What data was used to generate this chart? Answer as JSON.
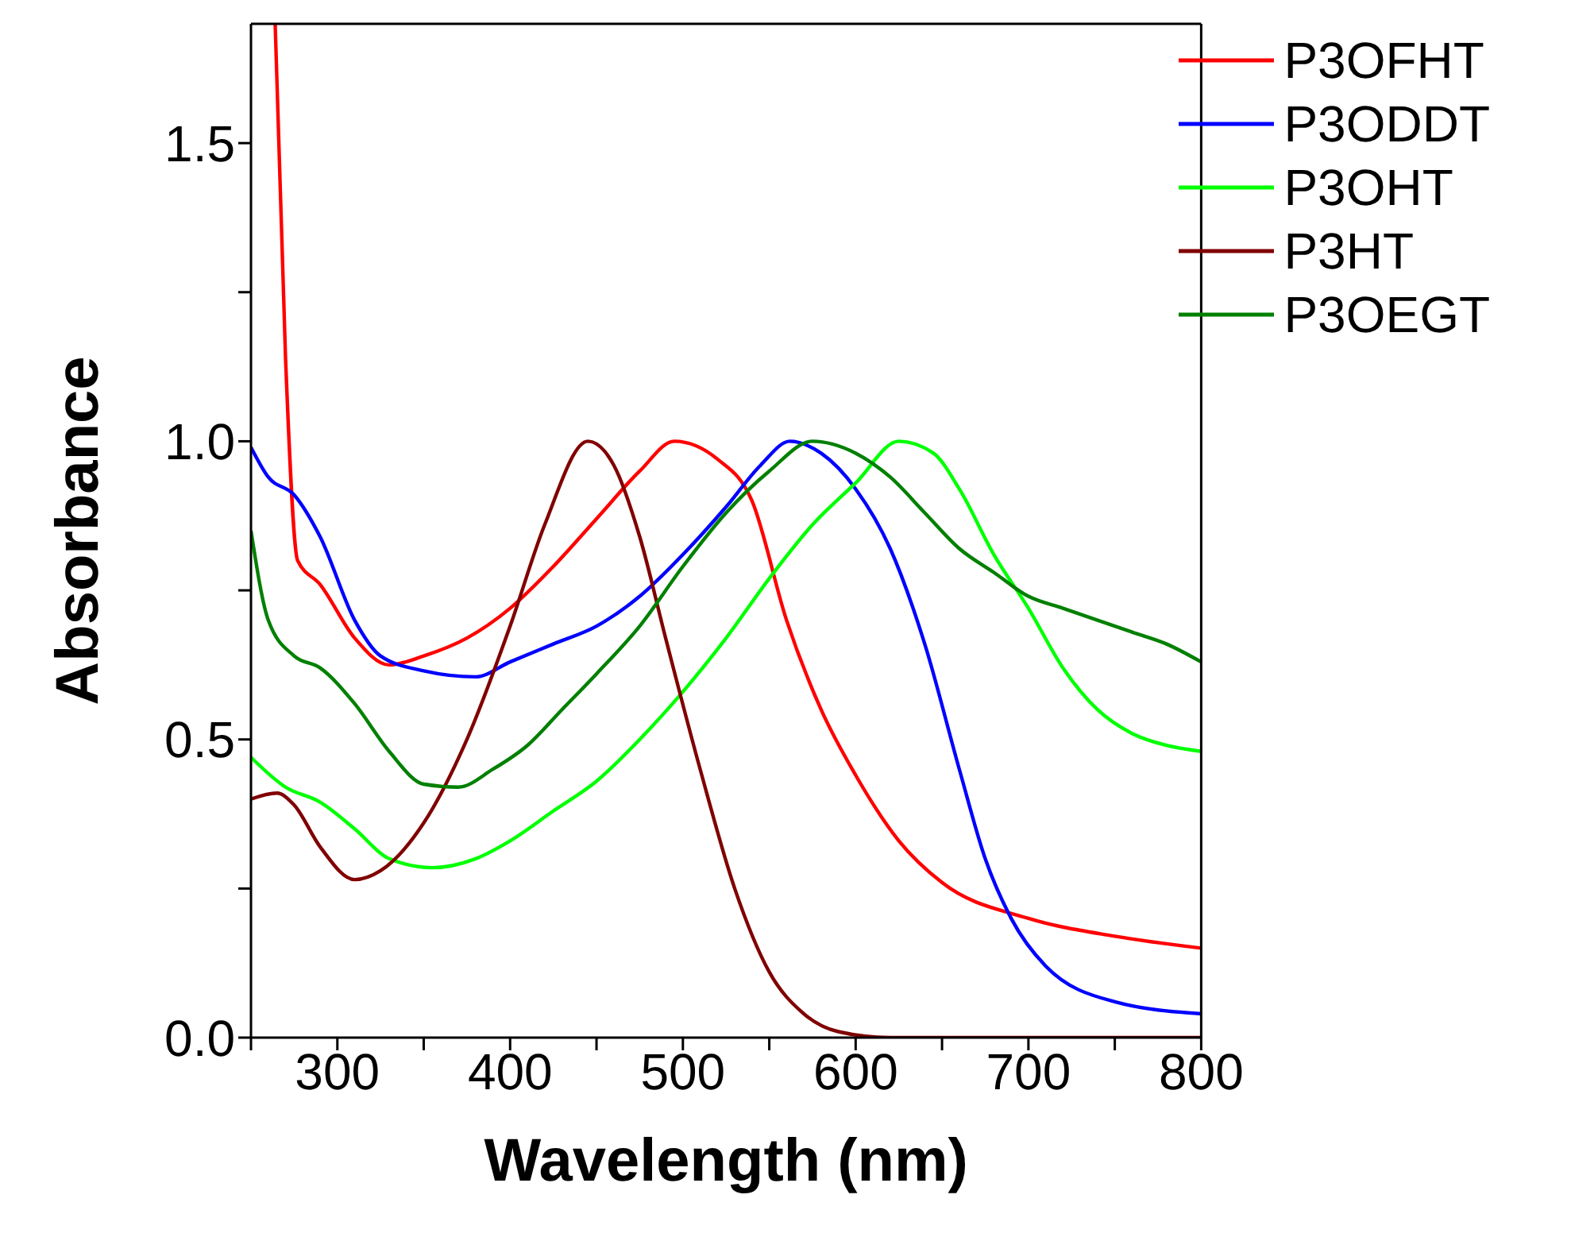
{
  "chart_data": {
    "type": "line",
    "xlabel": "Wavelength (nm)",
    "ylabel": "Absorbance",
    "xlim": [
      250,
      800
    ],
    "xticks": [
      {
        "value": 250,
        "label": null
      },
      300,
      {
        "value": 350,
        "label": null
      },
      400,
      {
        "value": 450,
        "label": null
      },
      500,
      {
        "value": 550,
        "label": null
      },
      600,
      {
        "value": 650,
        "label": null
      },
      700,
      {
        "value": 750,
        "label": null
      },
      800
    ],
    "ylim": [
      0,
      1.7
    ],
    "yticks": [
      {
        "value": 0,
        "label": "0.0"
      },
      {
        "value": 0.25,
        "label": null
      },
      0.5,
      {
        "value": 0.75,
        "label": null
      },
      {
        "value": 1,
        "label": "1.0"
      },
      {
        "value": 1.25,
        "label": null
      },
      1.5
    ],
    "grid": false,
    "legend": "top right",
    "marker": "none",
    "line_style": "solid",
    "series": [
      {
        "name": "P3OFHT",
        "color": "#ff0000",
        "x": [
          264,
          270,
          277,
          290,
          310,
          330,
          350,
          375,
          400,
          425,
          450,
          475,
          495,
          520,
          540,
          560,
          580,
          600,
          625,
          650,
          700,
          750,
          800
        ],
        "values": [
          1.7,
          1.14,
          0.8,
          0.76,
          0.67,
          0.625,
          0.64,
          0.67,
          0.72,
          0.79,
          0.87,
          0.95,
          1.0,
          0.97,
          0.9,
          0.7,
          0.55,
          0.44,
          0.33,
          0.26,
          0.2,
          0.17,
          0.15
        ]
      },
      {
        "name": "P3ODDT",
        "color": "#0000ff",
        "x": [
          250,
          260,
          275,
          290,
          310,
          325,
          350,
          380,
          400,
          425,
          450,
          475,
          500,
          525,
          545,
          562,
          580,
          600,
          620,
          640,
          660,
          675,
          690,
          710,
          750,
          800
        ],
        "values": [
          0.99,
          0.94,
          0.91,
          0.84,
          0.7,
          0.64,
          0.615,
          0.605,
          0.63,
          0.66,
          0.69,
          0.74,
          0.81,
          0.89,
          0.96,
          1.0,
          0.98,
          0.92,
          0.82,
          0.66,
          0.45,
          0.3,
          0.2,
          0.12,
          0.06,
          0.04
        ]
      },
      {
        "name": "P3OHT",
        "color": "#00ff00",
        "x": [
          250,
          270,
          290,
          310,
          330,
          355,
          380,
          400,
          425,
          450,
          475,
          500,
          525,
          550,
          575,
          600,
          625,
          645,
          660,
          680,
          700,
          720,
          740,
          760,
          780,
          800
        ],
        "values": [
          0.47,
          0.42,
          0.395,
          0.35,
          0.3,
          0.285,
          0.3,
          0.33,
          0.38,
          0.43,
          0.5,
          0.58,
          0.67,
          0.77,
          0.86,
          0.93,
          1.0,
          0.98,
          0.92,
          0.81,
          0.72,
          0.62,
          0.55,
          0.51,
          0.49,
          0.48
        ]
      },
      {
        "name": "P3HT",
        "color": "#800000",
        "x": [
          250,
          265,
          275,
          290,
          310,
          325,
          350,
          375,
          400,
          420,
          445,
          460,
          475,
          490,
          510,
          530,
          550,
          570,
          590,
          620,
          700,
          800
        ],
        "values": [
          0.4,
          0.41,
          0.39,
          0.32,
          0.265,
          0.28,
          0.36,
          0.5,
          0.69,
          0.86,
          1.0,
          0.96,
          0.84,
          0.67,
          0.45,
          0.25,
          0.11,
          0.04,
          0.01,
          0.0,
          0.0,
          0.0
        ]
      },
      {
        "name": "P3OEGT",
        "color": "#008000",
        "x": [
          250,
          260,
          275,
          290,
          310,
          330,
          350,
          370,
          390,
          410,
          430,
          450,
          475,
          500,
          525,
          550,
          575,
          600,
          620,
          640,
          660,
          680,
          700,
          720,
          740,
          760,
          780,
          800
        ],
        "values": [
          0.85,
          0.7,
          0.64,
          0.62,
          0.56,
          0.48,
          0.425,
          0.42,
          0.45,
          0.49,
          0.55,
          0.61,
          0.69,
          0.79,
          0.88,
          0.95,
          1.0,
          0.98,
          0.94,
          0.88,
          0.82,
          0.78,
          0.74,
          0.72,
          0.7,
          0.68,
          0.66,
          0.63
        ]
      }
    ]
  }
}
